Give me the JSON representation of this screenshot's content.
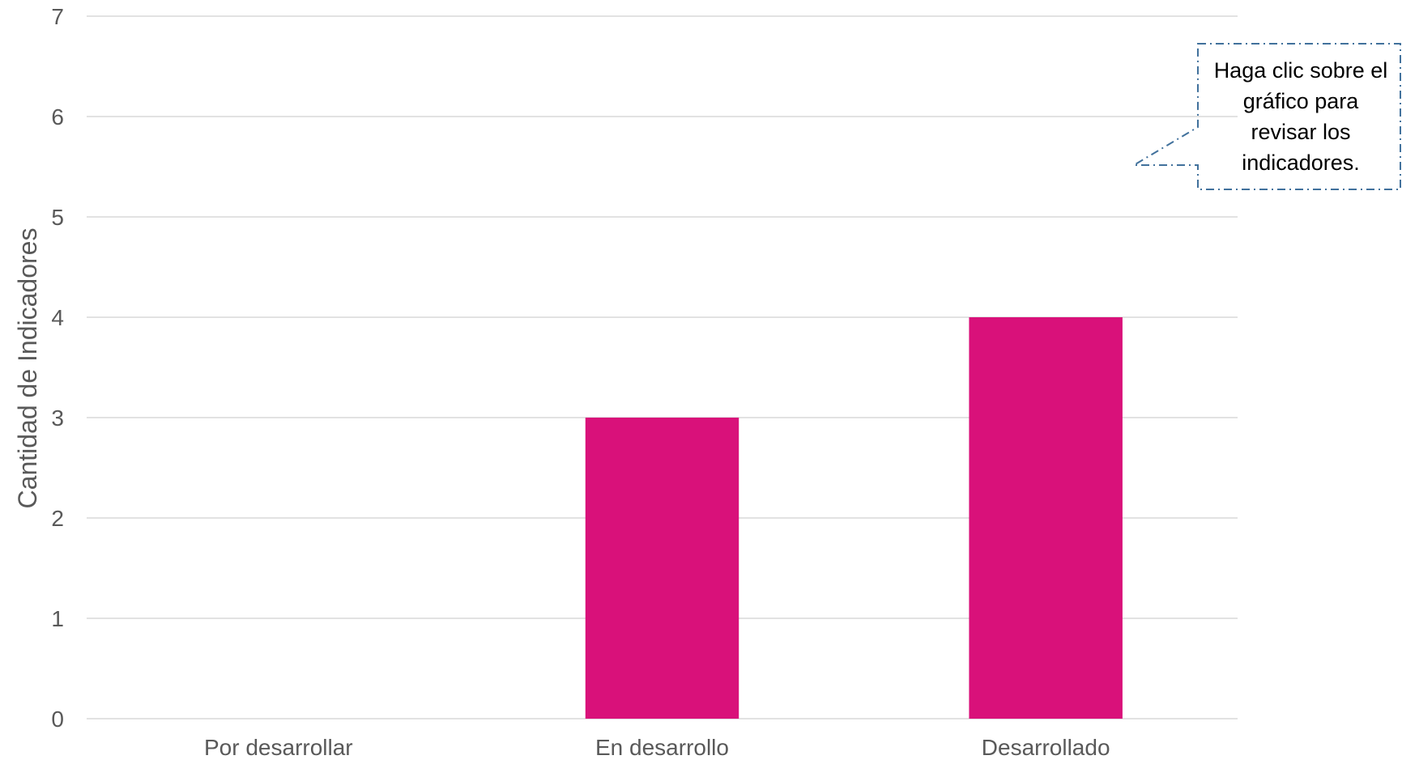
{
  "chart_data": {
    "type": "bar",
    "categories": [
      "Por desarrollar",
      "En desarrollo",
      "Desarrollado"
    ],
    "values": [
      0,
      3,
      4
    ],
    "xlabel": "",
    "ylabel": "Cantidad de Indicadores",
    "ylim": [
      0,
      7
    ],
    "yticks": [
      "0",
      "1",
      "2",
      "3",
      "4",
      "5",
      "6",
      "7"
    ],
    "grid": true,
    "legend": "none",
    "bar_color": "#d9117a",
    "callout_text": "Haga clic sobre el gráfico para revisar los indicadores."
  },
  "colors": {
    "bar": "#d9117a",
    "grid": "#d9d9d9",
    "text": "#595959",
    "callout_border": "#41719c"
  }
}
